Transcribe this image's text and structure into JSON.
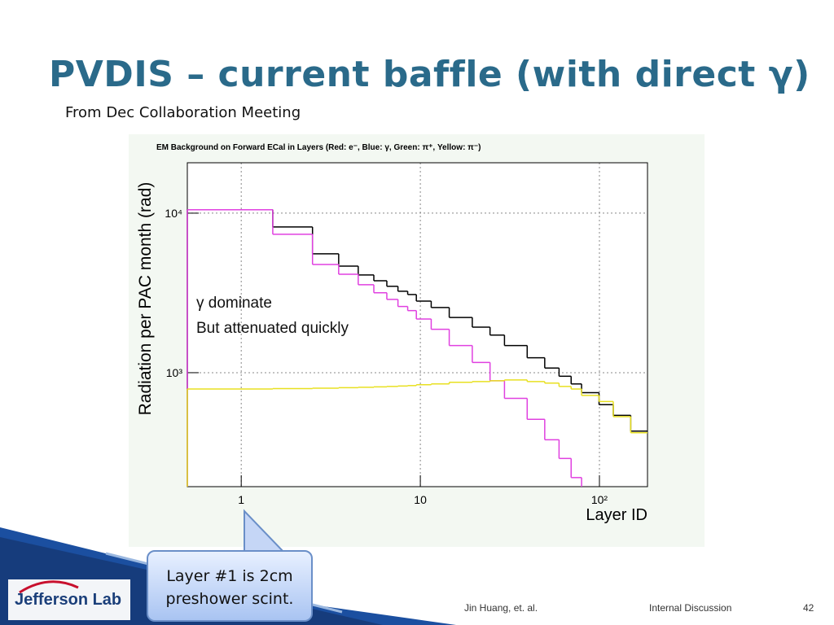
{
  "title": "PVDIS – current baffle (with direct γ)",
  "subtitle": "From Dec Collaboration Meeting",
  "callout": [
    "Layer #1 is 2cm",
    "preshower scint."
  ],
  "footer": {
    "author": "Jin Huang, et. al.",
    "note": "Internal Discussion",
    "page": "42",
    "logo": "Jefferson Lab"
  },
  "chart_data": {
    "type": "histogram",
    "title": "EM Background on Forward ECal in Layers (Red: e⁻, Blue: γ, Green: π⁺, Yellow: π⁻)",
    "xlabel": "Layer ID",
    "ylabel": "Radiation per PAC month (rad)",
    "annotations": [
      "γ dominate",
      "But attenuated quickly"
    ],
    "xscale": "log",
    "yscale": "log",
    "grid": true,
    "xlim": [
      0.5,
      185.5
    ],
    "ylim": [
      193,
      20700
    ],
    "xticks": [
      1,
      10,
      {
        "value": 100,
        "label": "10²"
      }
    ],
    "yticks": [
      {
        "value": 1000,
        "label": "10³"
      },
      {
        "value": 10000,
        "label": "10⁴"
      }
    ],
    "bins": [
      0.5,
      1.5,
      2.5,
      3.5,
      4.5,
      5.5,
      6.5,
      7.5,
      8.5,
      9.5,
      11.5,
      14.5,
      19.5,
      24.5,
      29.5,
      39.5,
      49.5,
      59.5,
      69.5,
      79.5,
      99.5,
      119.5,
      149.5,
      185.5
    ],
    "series": [
      {
        "color": "#000000",
        "values": [
          10500,
          8190,
          5560,
          4660,
          4100,
          3770,
          3480,
          3240,
          3090,
          2810,
          2560,
          2220,
          1930,
          1720,
          1480,
          1240,
          1070,
          950,
          850,
          750,
          630,
          540,
          430
        ]
      },
      {
        "color": "#e040e0",
        "values": [
          10500,
          7370,
          4770,
          4140,
          3560,
          3170,
          2880,
          2600,
          2450,
          2170,
          1870,
          1480,
          1160,
          890,
          690,
          510,
          380,
          290,
          220,
          null,
          null,
          null,
          null
        ]
      },
      {
        "color": "#e8e020",
        "values": [
          790,
          795,
          800,
          805,
          810,
          815,
          820,
          825,
          830,
          840,
          850,
          870,
          880,
          890,
          900,
          880,
          860,
          820,
          790,
          720,
          660,
          530,
          420
        ]
      }
    ]
  }
}
